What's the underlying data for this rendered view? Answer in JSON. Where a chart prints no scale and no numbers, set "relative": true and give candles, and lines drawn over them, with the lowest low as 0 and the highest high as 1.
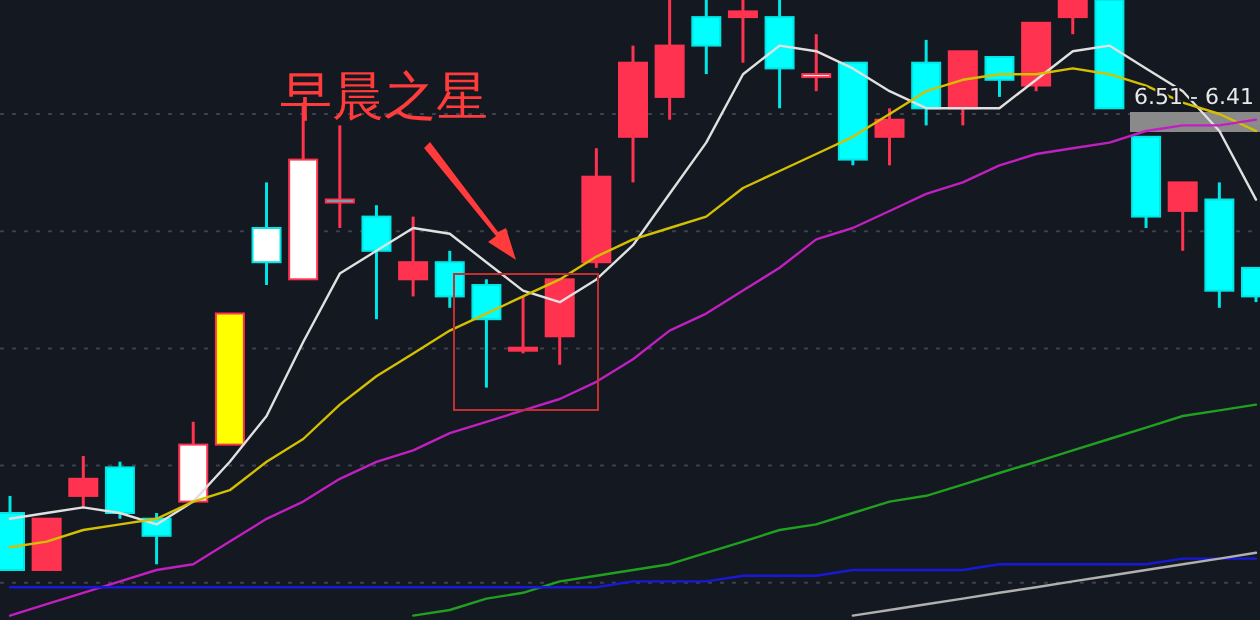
{
  "chart_data": {
    "type": "candlestick",
    "relative": true,
    "grid": true,
    "categories": [
      null,
      null,
      null,
      null,
      null,
      null,
      null,
      null,
      null,
      null,
      null,
      null,
      null,
      null,
      null,
      null,
      null,
      null,
      null,
      null,
      null,
      null,
      null,
      null,
      null,
      null,
      null,
      null,
      null,
      null,
      null,
      null,
      null,
      null,
      null
    ],
    "ohlc": [
      [
        0.1,
        0.13,
        0,
        0
      ],
      [
        0,
        0.09,
        0,
        0.09
      ],
      [
        0.13,
        0.2,
        0.11,
        0.16
      ],
      [
        0.18,
        0.19,
        0.09,
        0.1
      ],
      [
        0.09,
        0.1,
        0.01,
        0.06
      ],
      [
        0.12,
        0.26,
        0.12,
        0.22
      ],
      [
        0.22,
        0.45,
        0.22,
        0.45
      ],
      [
        0.6,
        0.68,
        0.5,
        0.54
      ],
      [
        0.51,
        0.82,
        0.51,
        0.72
      ],
      [
        0.65,
        0.78,
        0.6,
        0.65
      ],
      [
        0.62,
        0.64,
        0.44,
        0.56
      ],
      [
        0.51,
        0.62,
        0.48,
        0.54
      ],
      [
        0.54,
        0.56,
        0.46,
        0.48
      ],
      [
        0.5,
        0.51,
        0.32,
        0.44
      ],
      [
        0.39,
        0.48,
        0.38,
        0.39
      ],
      [
        0.41,
        0.51,
        0.36,
        0.51
      ],
      [
        0.54,
        0.74,
        0.53,
        0.69
      ],
      [
        0.76,
        0.92,
        0.68,
        0.89
      ],
      [
        0.83,
        1,
        0.79,
        0.92
      ],
      [
        0.97,
        1,
        0.87,
        0.92
      ],
      [
        0.97,
        1,
        0.89,
        0.98
      ],
      [
        0.97,
        1,
        0.81,
        0.88
      ],
      [
        0.87,
        0.94,
        0.84,
        0.87
      ],
      [
        0.89,
        0.89,
        0.71,
        0.72
      ],
      [
        0.76,
        0.81,
        0.71,
        0.79
      ],
      [
        0.89,
        0.93,
        0.78,
        0.81
      ],
      [
        0.81,
        0.91,
        0.78,
        0.91
      ],
      [
        0.9,
        0.9,
        0.83,
        0.86
      ],
      [
        0.85,
        0.96,
        0.84,
        0.96
      ],
      [
        0.97,
        1,
        0.94,
        1
      ],
      [
        1,
        1,
        0.81,
        0.81
      ],
      [
        0.76,
        0.76,
        0.6,
        0.62
      ],
      [
        0.63,
        0.68,
        0.56,
        0.68
      ],
      [
        0.65,
        0.68,
        0.46,
        0.49
      ],
      [
        0.53,
        0.53,
        0.47,
        0.48
      ]
    ],
    "colors": [
      "#00ffff",
      "#ff3350",
      "#ff3350",
      "#00ffff",
      "#00ffff",
      "#ffffff",
      "#ffff00",
      "#ffffff",
      "#ffffff",
      "#00ffff",
      "#00ffff",
      "#ff3350",
      "#00ffff",
      "#00ffff",
      "#ff3350",
      "#ff3350",
      "#ff3350",
      "#ff3350",
      "#ff3350",
      "#00ffff",
      "#ff3350",
      "#00ffff",
      "#ffffff",
      "#00ffff",
      "#ff3350",
      "#00ffff",
      "#ff3350",
      "#00ffff",
      "#ff3350",
      "#ff3350",
      "#00ffff",
      "#00ffff",
      "#ff3350",
      "#00ffff",
      "#00ffff"
    ],
    "series": [
      {
        "type": "line",
        "color": "#e0e0e0",
        "values": [
          0.09,
          0.1,
          0.11,
          0.1,
          0.08,
          0.12,
          0.19,
          0.27,
          0.4,
          0.52,
          0.56,
          0.6,
          0.59,
          0.54,
          0.49,
          0.47,
          0.51,
          0.57,
          0.66,
          0.75,
          0.87,
          0.92,
          0.91,
          0.88,
          0.84,
          0.81,
          0.81,
          0.81,
          0.86,
          0.91,
          0.92,
          0.88,
          0.84,
          0.77,
          0.65
        ]
      },
      {
        "type": "line",
        "color": "#d4c000",
        "values": [
          0.04,
          0.05,
          0.07,
          0.08,
          0.09,
          0.12,
          0.14,
          0.19,
          0.23,
          0.29,
          0.34,
          0.38,
          0.42,
          0.45,
          0.48,
          0.51,
          0.55,
          0.58,
          0.6,
          0.62,
          0.67,
          0.7,
          0.73,
          0.76,
          0.8,
          0.84,
          0.86,
          0.87,
          0.87,
          0.88,
          0.87,
          0.85,
          0.82,
          0.8,
          0.77
        ]
      },
      {
        "type": "line",
        "color": "#c020c0",
        "values": [
          -0.08,
          -0.06,
          -0.04,
          -0.02,
          0,
          0.01,
          0.05,
          0.09,
          0.12,
          0.16,
          0.19,
          0.21,
          0.24,
          0.26,
          0.28,
          0.3,
          0.33,
          0.37,
          0.42,
          0.45,
          0.49,
          0.53,
          0.58,
          0.6,
          0.63,
          0.66,
          0.68,
          0.71,
          0.73,
          0.74,
          0.75,
          0.77,
          0.78,
          0.78,
          0.79
        ]
      },
      {
        "type": "line",
        "color": "#20a020",
        "values": [
          null,
          null,
          null,
          null,
          null,
          null,
          null,
          null,
          null,
          null,
          null,
          -0.08,
          -0.07,
          -0.05,
          -0.04,
          -0.02,
          -0.01,
          0,
          0.01,
          0.03,
          0.05,
          0.07,
          0.08,
          0.1,
          0.12,
          0.13,
          0.15,
          0.17,
          0.19,
          0.21,
          0.23,
          0.25,
          0.27,
          0.28,
          0.29
        ]
      },
      {
        "type": "line",
        "color": "#1818d8",
        "values": [
          -0.03,
          -0.03,
          -0.03,
          -0.03,
          -0.03,
          -0.03,
          -0.03,
          -0.03,
          -0.03,
          -0.03,
          -0.03,
          -0.03,
          -0.03,
          -0.03,
          -0.03,
          -0.03,
          -0.03,
          -0.02,
          -0.02,
          -0.02,
          -0.01,
          -0.01,
          -0.01,
          0,
          0,
          0,
          0,
          0.01,
          0.01,
          0.01,
          0.01,
          0.01,
          0.02,
          0.02,
          0.02
        ]
      },
      {
        "type": "line",
        "color": "#b0b0b0",
        "values": [
          null,
          null,
          null,
          null,
          null,
          null,
          null,
          null,
          null,
          null,
          null,
          null,
          null,
          null,
          null,
          null,
          null,
          null,
          null,
          null,
          null,
          null,
          null,
          -0.08,
          -0.07,
          -0.06,
          -0.05,
          -0.04,
          -0.03,
          -0.02,
          -0.01,
          0,
          0.01,
          0.02,
          0.03
        ]
      }
    ],
    "annotations": [
      "早晨之星",
      "6.51 - 6.41"
    ]
  }
}
